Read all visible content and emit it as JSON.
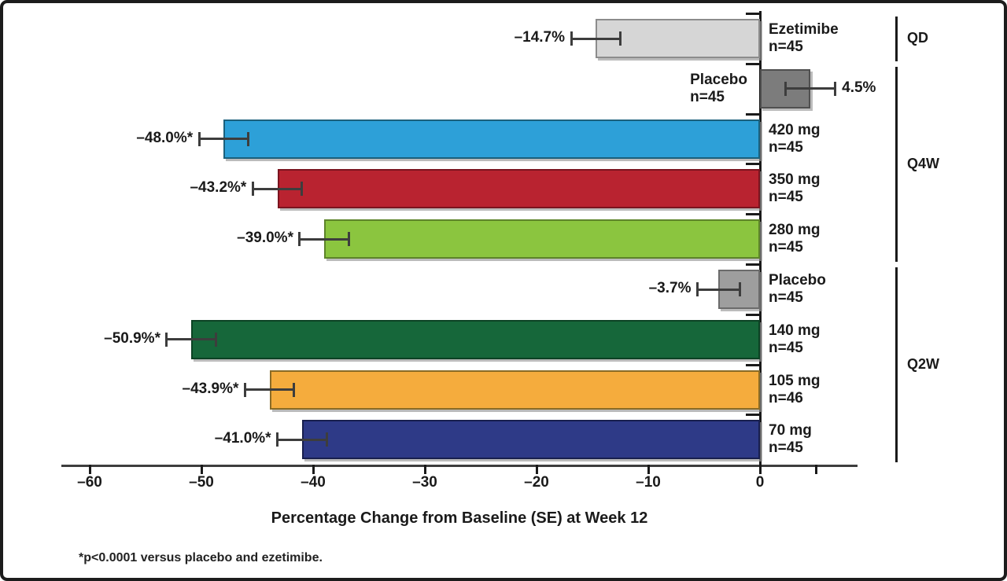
{
  "chart_data": {
    "type": "bar",
    "orientation": "horizontal",
    "xlabel": "Percentage Change from Baseline (SE) at Week 12",
    "footnote": "*p<0.0001 versus placebo and ezetimibe.",
    "xlim": [
      -60,
      8.8
    ],
    "grid": false,
    "xticks": [
      -60,
      -50,
      -40,
      -30,
      -20,
      -10,
      0
    ],
    "xtick_labels": [
      "–60",
      "–50",
      "–40",
      "–30",
      "–20",
      "–10",
      "0"
    ],
    "extra_unlabeled_tick": 5,
    "bars": [
      {
        "label": "Ezetimibe",
        "n": "n=45",
        "value": -14.7,
        "se": 2.2,
        "display": "–14.7%",
        "color": "#d6d6d6",
        "border": "#8c8c8c",
        "group": "QD",
        "name_side": "right"
      },
      {
        "label": "Placebo",
        "n": "n=45",
        "value": 4.5,
        "se": 2.2,
        "display": "4.5%",
        "color": "#7c7c7c",
        "border": "#4f4f4f",
        "group": "Q4W",
        "name_side": "left"
      },
      {
        "label": "420 mg",
        "n": "n=45",
        "value": -48.0,
        "se": 2.2,
        "display": "–48.0%*",
        "color": "#2da0d8",
        "border": "#1b607c",
        "group": "Q4W",
        "name_side": "right"
      },
      {
        "label": "350 mg",
        "n": "n=45",
        "value": -43.2,
        "se": 2.2,
        "display": "–43.2%*",
        "color": "#b92330",
        "border": "#7a141f",
        "group": "Q4W",
        "name_side": "right"
      },
      {
        "label": "280 mg",
        "n": "n=45",
        "value": -39.0,
        "se": 2.2,
        "display": "–39.0%*",
        "color": "#8bc53f",
        "border": "#5d842a",
        "group": "Q4W",
        "name_side": "right"
      },
      {
        "label": "Placebo",
        "n": "n=45",
        "value": -3.7,
        "se": 1.9,
        "display": "–3.7%",
        "color": "#9e9e9e",
        "border": "#6b6b6b",
        "group": "Q2W",
        "name_side": "right"
      },
      {
        "label": "140 mg",
        "n": "n=45",
        "value": -50.9,
        "se": 2.2,
        "display": "–50.9%*",
        "color": "#16673a",
        "border": "#0c4224",
        "group": "Q2W",
        "name_side": "right"
      },
      {
        "label": "105 mg",
        "n": "n=46",
        "value": -43.9,
        "se": 2.2,
        "display": "–43.9%*",
        "color": "#f5ac3d",
        "border": "#8a6b26",
        "group": "Q2W",
        "name_side": "right"
      },
      {
        "label": "70 mg",
        "n": "n=45",
        "value": -41.0,
        "se": 2.2,
        "display": "–41.0%*",
        "color": "#2e3a87",
        "border": "#181f4e",
        "group": "Q2W",
        "name_side": "right"
      }
    ],
    "brackets": [
      {
        "label": "QD",
        "first_row": 0,
        "last_row": 0
      },
      {
        "label": "Q4W",
        "first_row": 1,
        "last_row": 4
      },
      {
        "label": "Q2W",
        "first_row": 5,
        "last_row": 8
      }
    ],
    "legend": null,
    "title": ""
  }
}
